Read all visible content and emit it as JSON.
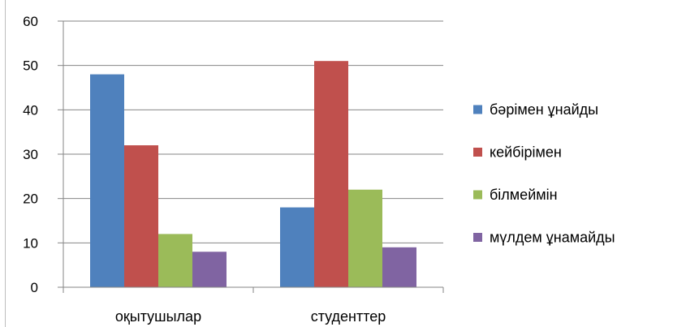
{
  "chart_data": {
    "type": "bar",
    "categories": [
      "оқытушылар",
      "студенттер"
    ],
    "series": [
      {
        "name": "бәрімен ұнайды",
        "values": [
          48,
          18
        ],
        "color": "#4f81bd"
      },
      {
        "name": "кейбірімен",
        "values": [
          32,
          51
        ],
        "color": "#c0504d"
      },
      {
        "name": "білмеймін",
        "values": [
          12,
          22
        ],
        "color": "#9bbb59"
      },
      {
        "name": "мүлдем ұнамайды",
        "values": [
          8,
          9
        ],
        "color": "#8064a2"
      }
    ],
    "title": "",
    "xlabel": "",
    "ylabel": "",
    "ylim": [
      0,
      60
    ],
    "yticks": [
      0,
      10,
      20,
      30,
      40,
      50,
      60
    ],
    "grid": true,
    "legend": "right"
  }
}
